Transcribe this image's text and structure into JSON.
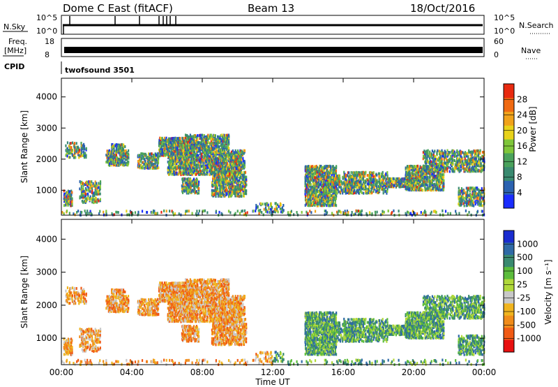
{
  "header": {
    "station": "Dome C East (fitACF)",
    "beam": "Beam 13",
    "date": "18/Oct/2016"
  },
  "summary_panels": {
    "nsky_label": "N.Sky",
    "nsky_ticks": [
      "10^5",
      "10^0"
    ],
    "nsearch_label": "N.Search",
    "freq_label_1": "Freq.",
    "freq_label_2": "[MHz]",
    "freq_ticks": [
      "18",
      "8"
    ],
    "nave_ticks": [
      "60",
      "0"
    ],
    "nave_label": "Nave",
    "cpid_label": "CPID",
    "cpid_value": "twofsound 3501"
  },
  "colors": {
    "power_scale": [
      "#1a2cff",
      "#2b62b0",
      "#3a8a70",
      "#4aa25c",
      "#7fc63a",
      "#e8d21a",
      "#f0a21a",
      "#f06a12",
      "#e82a10"
    ],
    "velocity_scale": [
      "#e81010",
      "#f05a14",
      "#f08c1a",
      "#f0b41e",
      "#c8c8c8",
      "#b0d83a",
      "#5cbc3c",
      "#3a8a70",
      "#2f6aa6",
      "#1a2cd0"
    ]
  },
  "chart_data": [
    {
      "type": "heatmap",
      "name": "power",
      "ylabel": "Slant Range [km]",
      "ylim": [
        200,
        4600
      ],
      "yticks": [
        1000,
        2000,
        3000,
        4000
      ],
      "xlim": [
        0,
        24
      ],
      "colorbar_label": "Power [dB]",
      "colorbar_range": [
        0,
        32
      ],
      "colorbar_ticks": [
        "4",
        "8",
        "12",
        "16",
        "20",
        "24",
        "28"
      ]
    },
    {
      "type": "heatmap",
      "name": "velocity",
      "xlabel": "Time UT",
      "ylabel": "Slant Range [km]",
      "ylim": [
        200,
        4600
      ],
      "yticks": [
        1000,
        2000,
        3000,
        4000
      ],
      "xlim": [
        0,
        24
      ],
      "xticks": [
        "00:00",
        "04:00",
        "08:00",
        "12:00",
        "16:00",
        "20:00",
        "00:00"
      ],
      "colorbar_label": "Velocity [m s⁻¹]",
      "colorbar_ticks": [
        "1000",
        "500",
        "100",
        "25",
        "-25",
        "-100",
        "-500",
        "-1000"
      ]
    }
  ]
}
